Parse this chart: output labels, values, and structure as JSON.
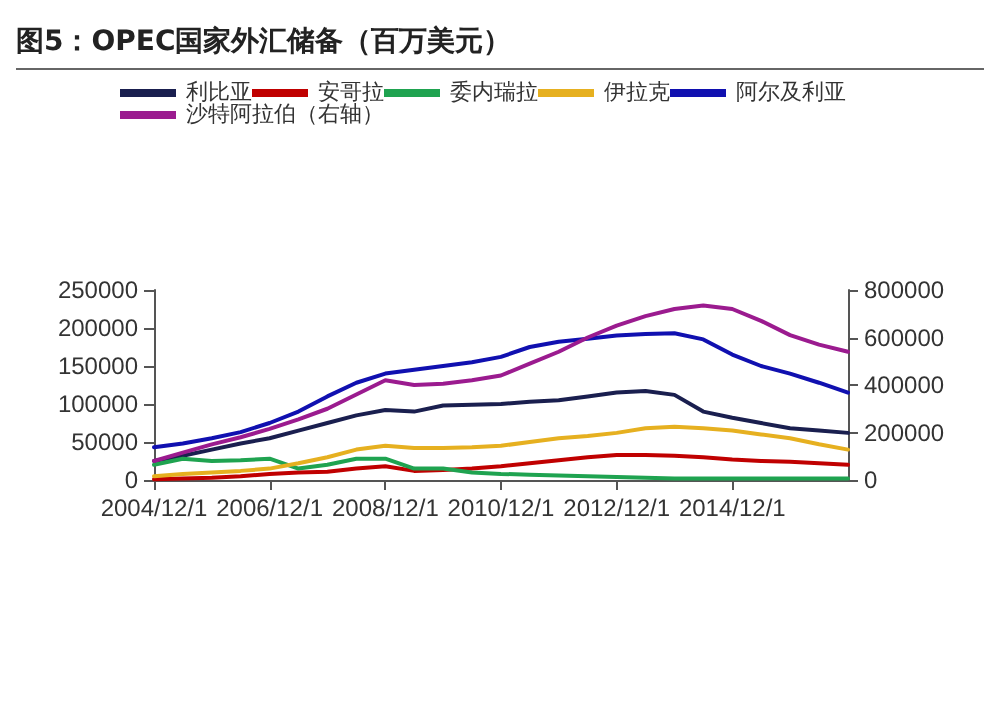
{
  "chart_data": {
    "type": "line",
    "title": "图5：OPEC国家外汇储备（百万美元）",
    "x": [
      "2004-12",
      "2005-06",
      "2005-12",
      "2006-06",
      "2006-12",
      "2007-06",
      "2007-12",
      "2008-06",
      "2008-12",
      "2009-06",
      "2009-12",
      "2010-06",
      "2010-12",
      "2011-06",
      "2011-12",
      "2012-06",
      "2012-12",
      "2013-06",
      "2013-12",
      "2014-06",
      "2014-12",
      "2015-06",
      "2015-12",
      "2016-06",
      "2016-12"
    ],
    "series": [
      {
        "name": "利比亚",
        "color": "#1a1f4f",
        "values": [
          25000,
          32000,
          40000,
          48000,
          55000,
          65000,
          75000,
          85000,
          92000,
          90000,
          98000,
          99000,
          100000,
          103000,
          105000,
          110000,
          115000,
          117000,
          112000,
          90000,
          82000,
          75000,
          68000,
          65000,
          62000
        ]
      },
      {
        "name": "安哥拉",
        "color": "#c00000",
        "values": [
          1000,
          2000,
          3000,
          5000,
          8000,
          10000,
          11000,
          15000,
          18000,
          12000,
          13000,
          15000,
          18000,
          22000,
          26000,
          30000,
          33000,
          33000,
          32000,
          30000,
          27000,
          25000,
          24000,
          22000,
          20000
        ]
      },
      {
        "name": "委内瑞拉",
        "color": "#1fa350",
        "values": [
          20000,
          28000,
          25000,
          26000,
          28000,
          15000,
          20000,
          28000,
          28000,
          15000,
          15000,
          10000,
          8000,
          7000,
          6000,
          5000,
          4000,
          3000,
          2000,
          2000,
          2000,
          2000,
          2000,
          2000,
          2000
        ]
      },
      {
        "name": "伊拉克",
        "color": "#e6b020",
        "values": [
          5000,
          8000,
          10000,
          12000,
          15000,
          22000,
          30000,
          40000,
          45000,
          42000,
          42000,
          43000,
          45000,
          50000,
          55000,
          58000,
          62000,
          68000,
          70000,
          68000,
          65000,
          60000,
          55000,
          47000,
          40000
        ]
      },
      {
        "name": "阿尔及利亚",
        "color": "#1010b0",
        "values": [
          43000,
          48000,
          55000,
          63000,
          75000,
          90000,
          110000,
          128000,
          140000,
          145000,
          150000,
          155000,
          162000,
          175000,
          182000,
          186000,
          190000,
          192000,
          193000,
          185000,
          165000,
          150000,
          140000,
          128000,
          115000
        ]
      },
      {
        "name": "沙特阿拉伯（右轴）",
        "color": "#9b1b8f",
        "axis": "y2",
        "values": [
          80000,
          115000,
          150000,
          180000,
          215000,
          255000,
          300000,
          360000,
          420000,
          400000,
          405000,
          420000,
          440000,
          490000,
          540000,
          600000,
          650000,
          690000,
          720000,
          735000,
          720000,
          670000,
          610000,
          570000,
          540000
        ]
      }
    ],
    "xlim": [
      "2004-12-01",
      "2016-12-01"
    ],
    "xticks": [
      {
        "value": "2004-12-01",
        "label": "2004/12/1"
      },
      {
        "value": "2006-12-01",
        "label": "2006/12/1"
      },
      {
        "value": "2008-12-01",
        "label": "2008/12/1"
      },
      {
        "value": "2010-12-01",
        "label": "2010/12/1"
      },
      {
        "value": "2012-12-01",
        "label": "2012/12/1"
      },
      {
        "value": "2014-12-01",
        "label": "2014/12/1"
      }
    ],
    "ylim": [
      0,
      250000
    ],
    "yticks": [
      0,
      50000,
      100000,
      150000,
      200000,
      250000
    ],
    "y2lim": [
      0,
      800000
    ],
    "y2ticks": [
      0,
      200000,
      400000,
      600000,
      800000
    ],
    "legend": "top",
    "marker": "none",
    "line_style": "solid"
  }
}
